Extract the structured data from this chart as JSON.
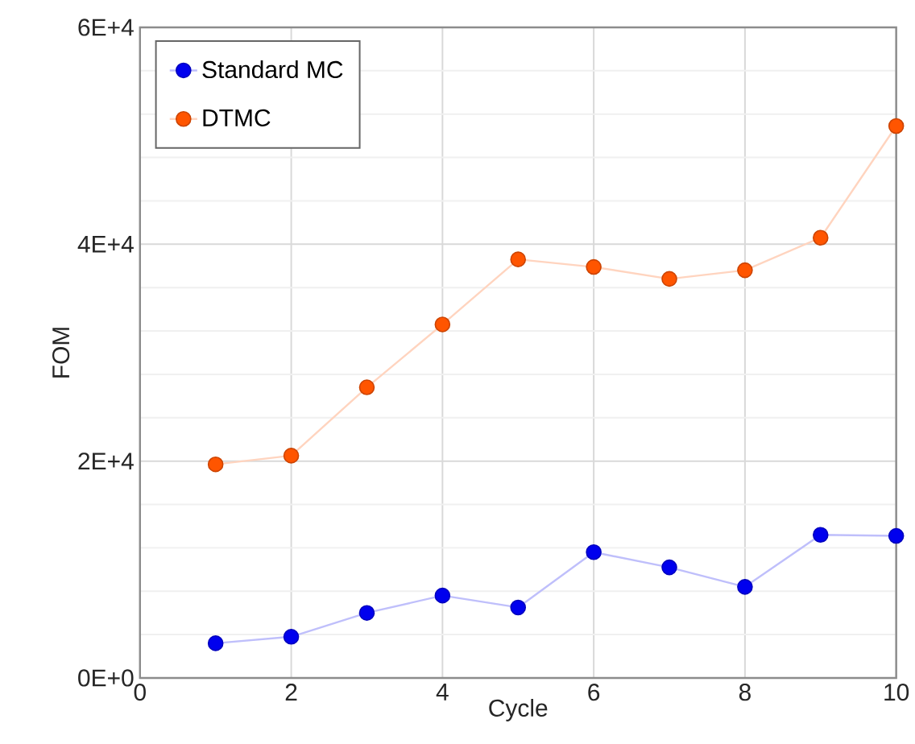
{
  "chart_data": {
    "type": "line",
    "xlabel": "Cycle",
    "ylabel": "FOM",
    "x": [
      1,
      2,
      3,
      4,
      5,
      6,
      7,
      8,
      9,
      10
    ],
    "series": [
      {
        "name": "Standard MC",
        "color": "#0000ee",
        "values": [
          3200,
          3800,
          6000,
          7600,
          6500,
          11600,
          10200,
          8400,
          13200,
          13100
        ]
      },
      {
        "name": "DTMC",
        "color": "#ff5500",
        "values": [
          19700,
          20500,
          26800,
          32600,
          38600,
          37900,
          36800,
          37600,
          40600,
          50900
        ]
      }
    ],
    "xlim": [
      0,
      10
    ],
    "ylim": [
      0,
      60000
    ],
    "xticks": [
      0,
      2,
      4,
      6,
      8,
      10
    ],
    "yticks": [
      {
        "value": 0,
        "label": "0E+0"
      },
      {
        "value": 20000,
        "label": "2E+4"
      },
      {
        "value": 40000,
        "label": "4E+4"
      },
      {
        "value": 60000,
        "label": "6E+4"
      }
    ],
    "grid": true,
    "legend": "top left",
    "marker": "circle",
    "line_style": "solid"
  }
}
